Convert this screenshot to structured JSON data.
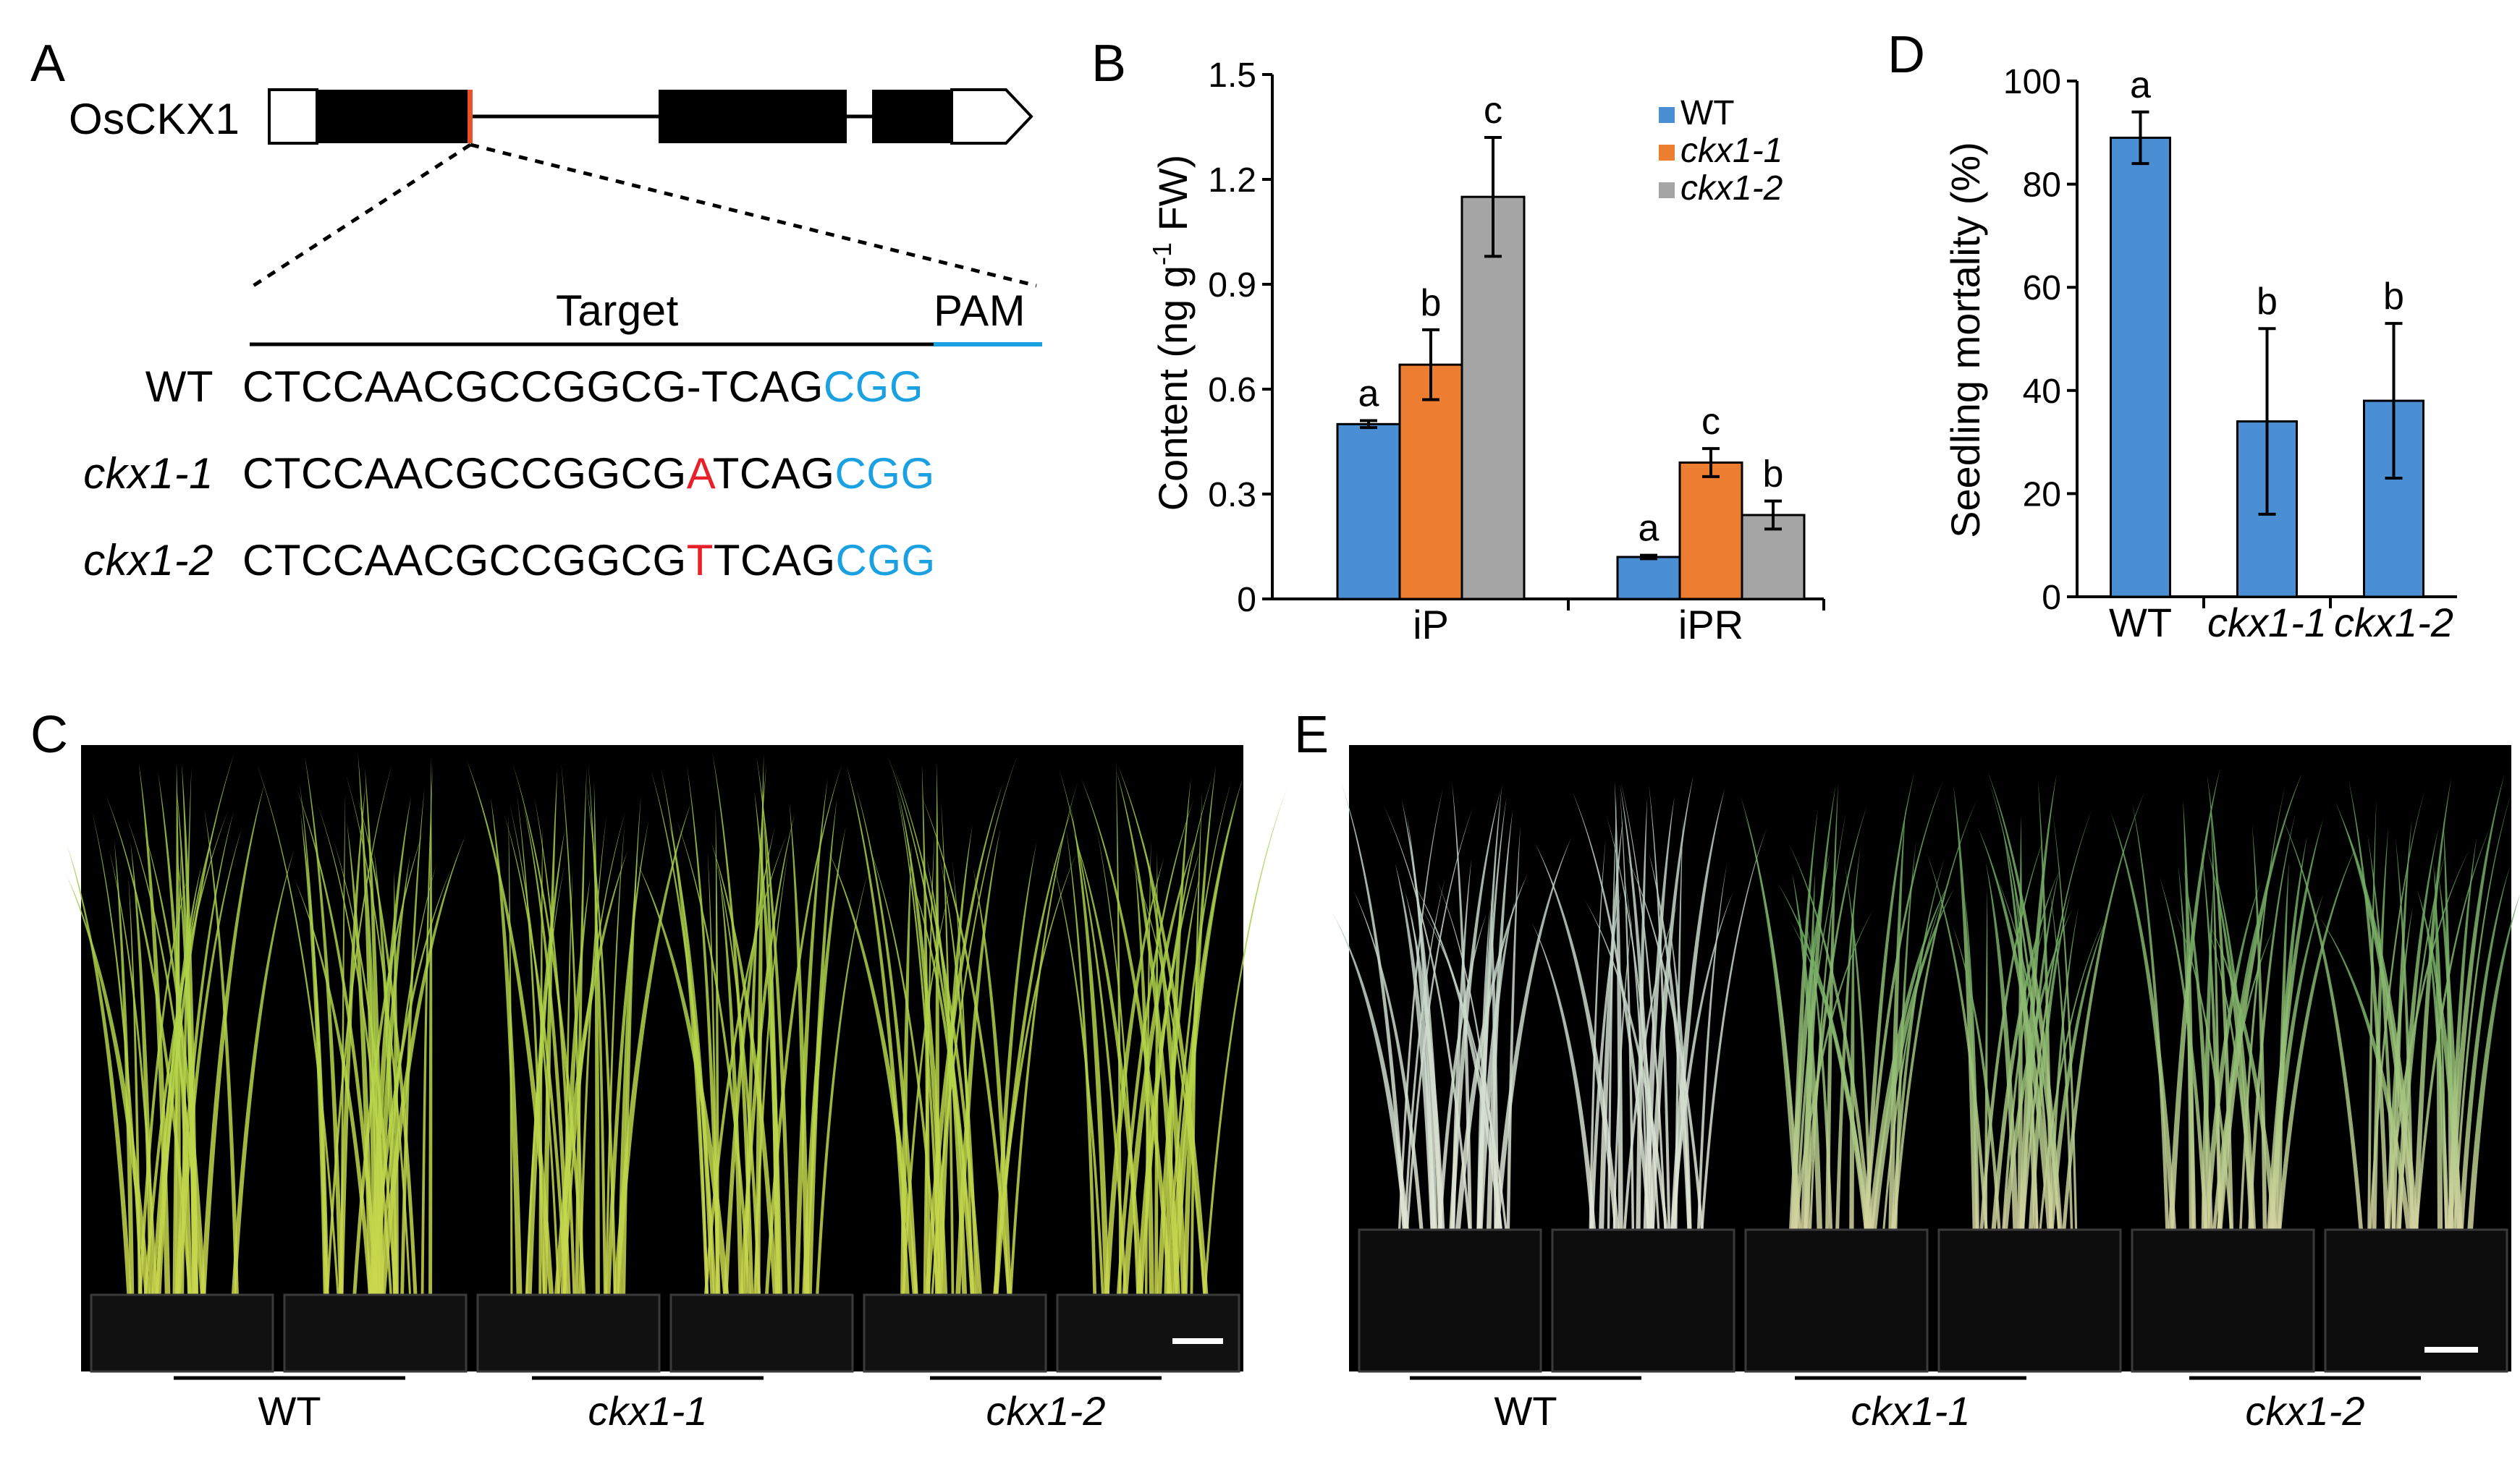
{
  "panels": {
    "a": "A",
    "b": "B",
    "c": "C",
    "d": "D",
    "e": "E"
  },
  "gene_diagram": {
    "gene_name": "OsCKX1",
    "target_label": "Target",
    "pam_label": "PAM",
    "pam_color": "#1ba1e2",
    "mutation_color": "#e8202a",
    "cut_site_color": "#e8512a",
    "rows": [
      {
        "label": "WT",
        "italic": false,
        "prefix": "CTCCAACGCCGGCG",
        "insert": "-",
        "insert_color": "#000000",
        "middle": "TCAG",
        "pam": "CGG"
      },
      {
        "label": "ckx1-1",
        "italic": true,
        "prefix": "CTCCAACGCCGGCG",
        "insert": "A",
        "insert_color": "#e8202a",
        "middle": "TCAG",
        "pam": "CGG"
      },
      {
        "label": "ckx1-2",
        "italic": true,
        "prefix": "CTCCAACGCCGGCG",
        "insert": "T",
        "insert_color": "#e8202a",
        "middle": "TCAG",
        "pam": "CGG"
      }
    ]
  },
  "chart_data": [
    {
      "panel": "B",
      "type": "bar",
      "ylabel": "Content (ng g-1 FW)",
      "ylabel_parts": [
        "Content (ng g",
        "-1",
        " FW)"
      ],
      "ylim": [
        0,
        1.5
      ],
      "yticks": [
        "0",
        "0.3",
        "0.6",
        "0.9",
        "1.2",
        "1.5"
      ],
      "categories": [
        "iP",
        "iPR"
      ],
      "legend_position": "top-right",
      "series": [
        {
          "name": "WT",
          "italic": false,
          "color": "#4a8fd4",
          "values": [
            0.5,
            0.12
          ],
          "errors": [
            0.01,
            0.005
          ],
          "letters": [
            "a",
            "a"
          ]
        },
        {
          "name": "ckx1-1",
          "italic": true,
          "color": "#ed7d31",
          "values": [
            0.67,
            0.39
          ],
          "errors": [
            0.1,
            0.04
          ],
          "letters": [
            "b",
            "c"
          ]
        },
        {
          "name": "ckx1-2",
          "italic": true,
          "color": "#a5a5a5",
          "values": [
            1.15,
            0.24
          ],
          "errors": [
            0.17,
            0.04
          ],
          "letters": [
            "c",
            "b"
          ]
        }
      ]
    },
    {
      "panel": "D",
      "type": "bar",
      "ylabel": "Seedling mortality (%)",
      "ylim": [
        0,
        100
      ],
      "yticks": [
        "0",
        "20",
        "40",
        "60",
        "80",
        "100"
      ],
      "categories": [
        "WT",
        "ckx1-1",
        "ckx1-2"
      ],
      "categories_italic": [
        false,
        true,
        true
      ],
      "color": "#4a8fd4",
      "values": [
        89,
        34,
        38
      ],
      "errors": [
        5,
        18,
        15
      ],
      "letters": [
        "a",
        "b",
        "b"
      ]
    }
  ],
  "photos": {
    "c": {
      "labels": [
        "WT",
        "ckx1-1",
        "ckx1-2"
      ],
      "italic": [
        false,
        true,
        true
      ]
    },
    "e": {
      "labels": [
        "WT",
        "ckx1-1",
        "ckx1-2"
      ],
      "italic": [
        false,
        true,
        true
      ]
    }
  }
}
